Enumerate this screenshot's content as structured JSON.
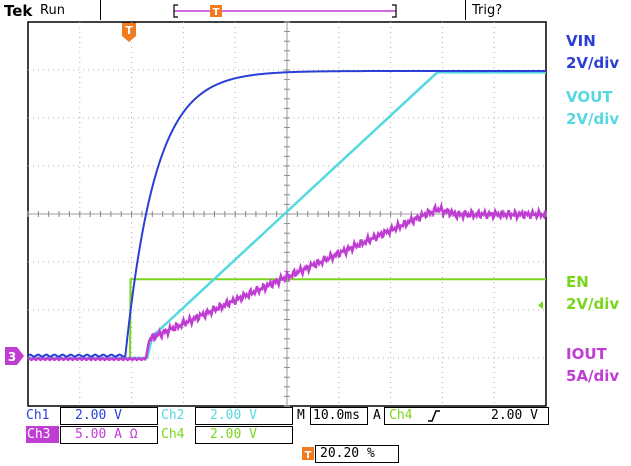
{
  "header": {
    "brand": "Tek",
    "state": "Run",
    "trigger_status": "Trig?"
  },
  "markers": {
    "trigger_marker": "T",
    "ch3_ground_marker": "3"
  },
  "labels": {
    "vin": "VIN",
    "vin_scale": "2V/div",
    "vout": "VOUT",
    "vout_scale": "2V/div",
    "en": "EN",
    "en_scale": "2V/div",
    "iout": "IOUT",
    "iout_scale": "5A/div"
  },
  "readout": {
    "ch1_label": "Ch1",
    "ch1_value": "2.00 V",
    "ch2_label": "Ch2",
    "ch2_value": "2.00 V",
    "ch3_label": "Ch3",
    "ch3_value": "5.00 A Ω",
    "ch4_label": "Ch4",
    "ch4_value": "2.00 V",
    "timebase_label": "M",
    "timebase_value": "10.0ms",
    "trigger_mode": "A",
    "trigger_source": "Ch4",
    "trigger_level": "2.00 V",
    "trigger_position": "20.20 %"
  },
  "colors": {
    "vin": "#2b3fd6",
    "vout": "#55d8e0",
    "en": "#7ad61c",
    "iout": "#c03dd4",
    "trigger_marker": "#f27b1f",
    "grid": "#b0b0b0",
    "frame": "#000000"
  },
  "scope": {
    "horizontal_divisions": 10,
    "vertical_divisions": 8,
    "grid": true
  }
}
